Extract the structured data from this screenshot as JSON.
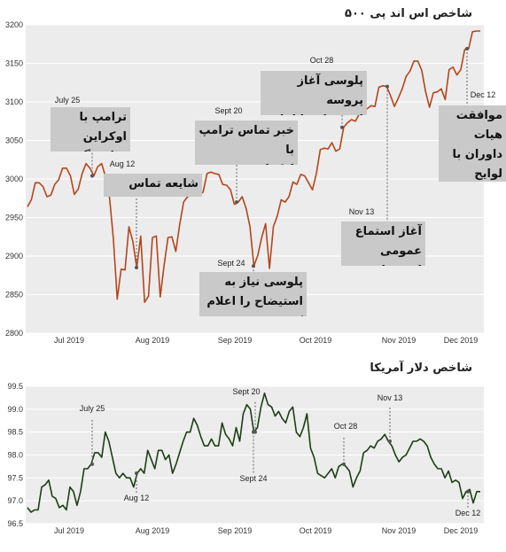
{
  "charts": [
    {
      "title": "شاخص اس اند پی ۵۰۰",
      "type": "line",
      "color": "#b5451b",
      "ylim": [
        2800,
        3200
      ],
      "yticks": [
        2800,
        2850,
        2900,
        2950,
        3000,
        3050,
        3100,
        3150,
        3200
      ],
      "xticks": [
        "Jul 2019",
        "Aug 2019",
        "Sep 2019",
        "Oct 2019",
        "Nov 2019",
        "Dec 2019"
      ],
      "events": [
        {
          "date": "July 25",
          "callout": "ترامپ با اوکراین\nتماس گرفت"
        },
        {
          "date": "Aug 12",
          "callout": "شایعه تماس ترامپ"
        },
        {
          "date": "Sept 20",
          "callout": "خبر تماس ترامپ با\nاوکراین رسانه‌ای شد"
        },
        {
          "date": "Sept 24",
          "callout": "پلوسی نیاز به\nاستیضاح را اعلام کرد"
        },
        {
          "date": "Oct 28",
          "callout": "پلوسی آغاز پروسه\nاستیضاح را اعلام کرد"
        },
        {
          "date": "Nov 13",
          "callout": "آغاز استماع\nعمومی استیضاح"
        },
        {
          "date": "Dec 12",
          "callout": "موافقت هیات\nداوران با لوایح\nاستیضاح"
        }
      ],
      "values": [
        2964,
        2973,
        2995,
        2995,
        2990,
        2977,
        2979,
        2993,
        2999,
        3014,
        3014,
        3004,
        2980,
        2987,
        3007,
        3020,
        3014,
        3004,
        3016,
        3020,
        3003,
        2977,
        2923,
        2844,
        2883,
        2882,
        2938,
        2919,
        2885,
        2926,
        2840,
        2848,
        2924,
        2926,
        2847,
        2888,
        2924,
        2925,
        2906,
        2941,
        2970,
        2977,
        2979,
        2999,
        2979,
        2983,
        3007,
        3009,
        3007,
        3006,
        2993,
        2992,
        2986,
        2967,
        2970,
        2977,
        2962,
        2938,
        2887,
        2901,
        2924,
        2942,
        2884,
        2938,
        2952,
        2973,
        2970,
        2977,
        2996,
        2993,
        3006,
        3004,
        2995,
        2986,
        3007,
        3038,
        3040,
        3039,
        3047,
        3036,
        3039,
        3067,
        3073,
        3077,
        3075,
        3084,
        3092,
        3091,
        3095,
        3094,
        3119,
        3121,
        3120,
        3108,
        3094,
        3105,
        3117,
        3133,
        3140,
        3153,
        3153,
        3141,
        3113,
        3093,
        3112,
        3113,
        3117,
        3103,
        3142,
        3145,
        3135,
        3142,
        3168,
        3169,
        3191,
        3192,
        3192
      ]
    },
    {
      "title": "شاخص دلار آمریکا",
      "type": "line",
      "color": "#1b3f13",
      "ylim": [
        96.5,
        99.5
      ],
      "yticks": [
        96.5,
        97.0,
        97.5,
        98.0,
        98.5,
        99.0,
        99.5
      ],
      "xticks": [
        "Jul 2019",
        "Aug 2019",
        "Sep 2019",
        "Oct 2019",
        "Nov 2019",
        "Dec 2019"
      ],
      "events": [
        {
          "date": "July 25"
        },
        {
          "date": "Aug 12"
        },
        {
          "date": "Sept 20"
        },
        {
          "date": "Sept 24"
        },
        {
          "date": "Oct 28"
        },
        {
          "date": "Nov 13"
        },
        {
          "date": "Dec 12"
        }
      ],
      "values": [
        96.85,
        96.75,
        96.8,
        96.8,
        97.3,
        97.35,
        97.45,
        97.1,
        97.05,
        96.85,
        96.9,
        96.8,
        97.3,
        97.2,
        96.9,
        97.2,
        97.7,
        97.7,
        97.8,
        98.05,
        98.05,
        97.95,
        98.5,
        98.3,
        97.95,
        97.6,
        97.5,
        97.6,
        97.5,
        97.5,
        97.3,
        97.6,
        97.7,
        97.6,
        98.1,
        97.9,
        97.7,
        98.1,
        98.1,
        97.9,
        98.0,
        97.6,
        97.8,
        98.05,
        98.3,
        98.5,
        98.5,
        98.8,
        98.65,
        98.4,
        98.2,
        98.2,
        98.35,
        98.2,
        98.2,
        98.7,
        98.45,
        98.35,
        98.2,
        98.6,
        98.3,
        98.9,
        99.1,
        99.0,
        98.5,
        98.6,
        99.05,
        99.35,
        99.1,
        99.05,
        98.85,
        98.95,
        98.8,
        98.7,
        98.95,
        99.05,
        98.5,
        98.4,
        98.6,
        98.9,
        98.15,
        97.95,
        97.6,
        97.55,
        97.5,
        97.6,
        97.7,
        97.5,
        97.75,
        97.8,
        97.75,
        97.65,
        97.3,
        97.5,
        97.65,
        98.05,
        98.1,
        98.2,
        98.15,
        98.3,
        98.35,
        98.45,
        98.3,
        98.2,
        98.0,
        97.85,
        97.95,
        98.0,
        98.15,
        98.3,
        98.3,
        98.35,
        98.3,
        98.2,
        97.95,
        97.8,
        97.7,
        97.7,
        97.5,
        97.65,
        97.4,
        97.45,
        97.4,
        97.05,
        97.2,
        97.25,
        96.95,
        97.2,
        97.2
      ]
    }
  ]
}
